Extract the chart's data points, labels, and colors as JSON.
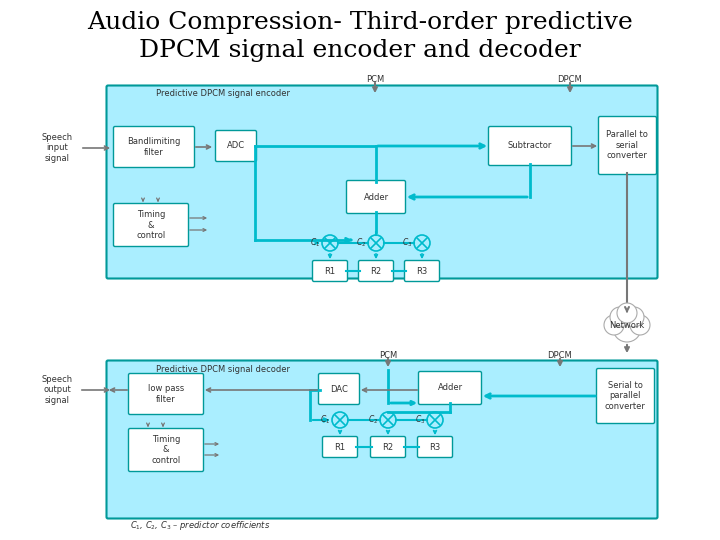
{
  "title_line1": "Audio Compression- Third-order predictive",
  "title_line2": "DPCM signal encoder and decoder",
  "title_fontsize": 18,
  "bg_color": "#ffffff",
  "cyan_bg": "#aaeeff",
  "cyan_line": "#00bbcc",
  "box_color": "#ffffff",
  "box_edge": "#009999",
  "gray_arrow": "#777777",
  "text_color": "#333333",
  "small_fontsize": 6,
  "footnote": "$C_1$, $C_2$, $C_3$ – predictor coefficients"
}
